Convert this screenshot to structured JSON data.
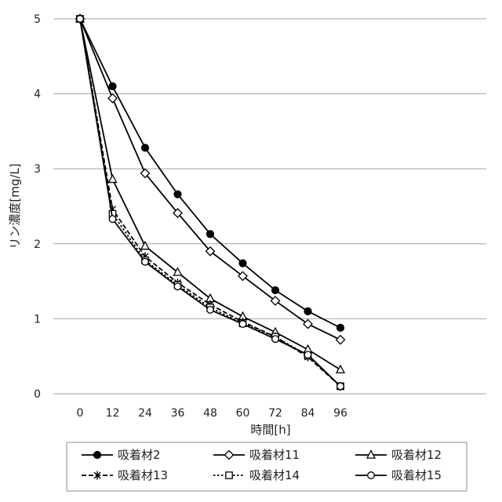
{
  "chart_data": {
    "type": "line",
    "xlabel": "時間[h]",
    "ylabel": "リン濃度[mg/L]",
    "x": [
      0,
      12,
      24,
      36,
      48,
      60,
      72,
      84,
      96
    ],
    "xlim": [
      0,
      96
    ],
    "ylim": [
      0,
      5
    ],
    "yticks": [
      0,
      1,
      2,
      3,
      4,
      5
    ],
    "grid": true,
    "legend_position": "bottom",
    "series": [
      {
        "name": "吸着材2",
        "marker": "filled-circle",
        "line": "solid",
        "values": [
          5,
          4.1,
          3.28,
          2.66,
          2.13,
          1.74,
          1.38,
          1.1,
          0.88
        ]
      },
      {
        "name": "吸着材11",
        "marker": "diamond",
        "line": "solid",
        "values": [
          5,
          3.94,
          2.94,
          2.41,
          1.9,
          1.57,
          1.24,
          0.93,
          0.72
        ]
      },
      {
        "name": "吸着材12",
        "marker": "triangle",
        "line": "solid",
        "values": [
          5,
          2.86,
          1.97,
          1.62,
          1.27,
          1.03,
          0.82,
          0.59,
          0.32
        ]
      },
      {
        "name": "吸着材13",
        "marker": "asterisk",
        "line": "dashed",
        "values": [
          5,
          2.46,
          1.83,
          1.48,
          1.19,
          0.96,
          0.76,
          0.49,
          0.1
        ]
      },
      {
        "name": "吸着材14",
        "marker": "square",
        "line": "dotted",
        "values": [
          5,
          2.4,
          1.78,
          1.45,
          1.15,
          0.94,
          0.76,
          0.51,
          0.1
        ]
      },
      {
        "name": "吸着材15",
        "marker": "open-circle",
        "line": "solid",
        "values": [
          5,
          2.33,
          1.76,
          1.43,
          1.12,
          0.93,
          0.73,
          0.52,
          0.1
        ]
      }
    ],
    "colors": {
      "line": "#000000",
      "grid": "#a6a6a6",
      "axis": "#a6a6a6",
      "text": "#222222"
    }
  }
}
